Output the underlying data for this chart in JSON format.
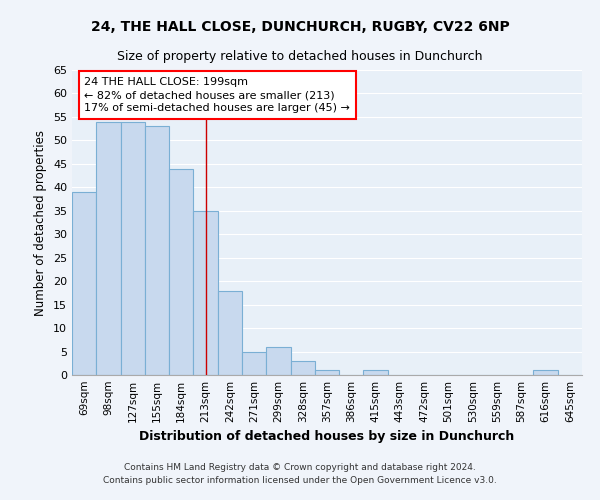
{
  "title": "24, THE HALL CLOSE, DUNCHURCH, RUGBY, CV22 6NP",
  "subtitle": "Size of property relative to detached houses in Dunchurch",
  "xlabel": "Distribution of detached houses by size in Dunchurch",
  "ylabel": "Number of detached properties",
  "bar_color": "#c8d9ee",
  "bar_edge_color": "#7aafd4",
  "background_color": "#e8f0f8",
  "fig_background_color": "#f0f4fa",
  "grid_color": "#ffffff",
  "categories": [
    "69sqm",
    "98sqm",
    "127sqm",
    "155sqm",
    "184sqm",
    "213sqm",
    "242sqm",
    "271sqm",
    "299sqm",
    "328sqm",
    "357sqm",
    "386sqm",
    "415sqm",
    "443sqm",
    "472sqm",
    "501sqm",
    "530sqm",
    "559sqm",
    "587sqm",
    "616sqm",
    "645sqm"
  ],
  "values": [
    39,
    54,
    54,
    53,
    44,
    35,
    18,
    5,
    6,
    3,
    1,
    0,
    1,
    0,
    0,
    0,
    0,
    0,
    0,
    1,
    0
  ],
  "ylim": [
    0,
    65
  ],
  "yticks": [
    0,
    5,
    10,
    15,
    20,
    25,
    30,
    35,
    40,
    45,
    50,
    55,
    60,
    65
  ],
  "property_line_x": 5.0,
  "annotation_title": "24 THE HALL CLOSE: 199sqm",
  "annotation_line1": "← 82% of detached houses are smaller (213)",
  "annotation_line2": "17% of semi-detached houses are larger (45) →",
  "footer_line1": "Contains HM Land Registry data © Crown copyright and database right 2024.",
  "footer_line2": "Contains public sector information licensed under the Open Government Licence v3.0."
}
